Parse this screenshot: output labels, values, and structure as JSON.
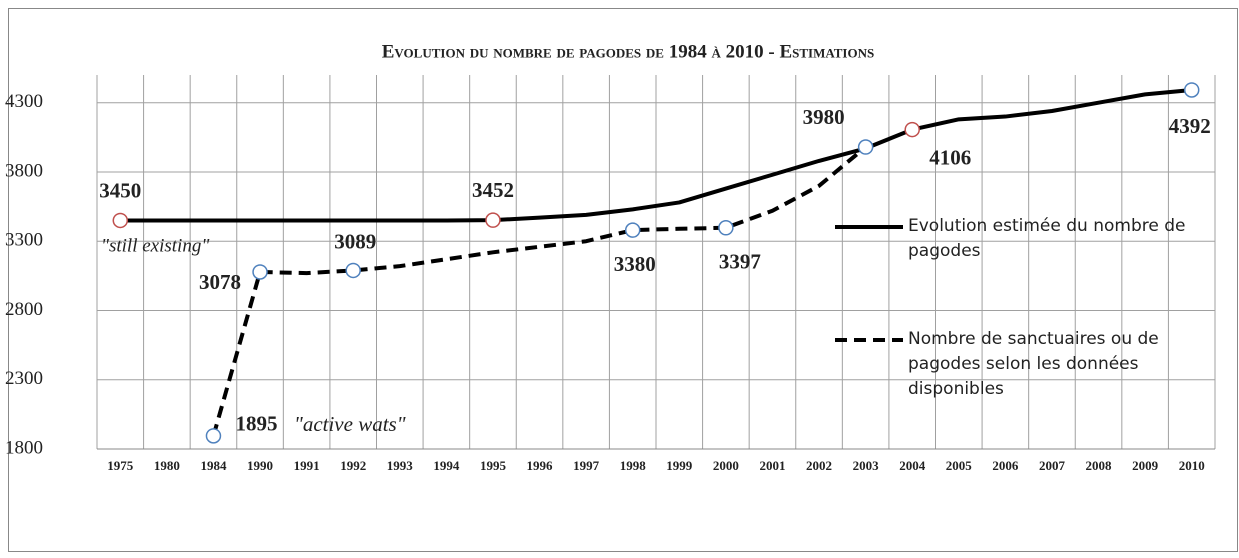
{
  "chart_data": {
    "type": "line",
    "title": "Evolution du nombre de pagodes de 1984 à 2010 - Estimations",
    "categories": [
      "1975",
      "1980",
      "1984",
      "1990",
      "1991",
      "1992",
      "1993",
      "1994",
      "1995",
      "1996",
      "1997",
      "1998",
      "1999",
      "2000",
      "2001",
      "2002",
      "2003",
      "2004",
      "2005",
      "2006",
      "2007",
      "2008",
      "2009",
      "2010"
    ],
    "series": [
      {
        "name": "Evolution estimée du nombre de pagodes",
        "color": "#000000",
        "dash": false,
        "values": [
          3450,
          3450,
          3450,
          3450,
          3450,
          3450,
          3450,
          3450,
          3452,
          3470,
          3490,
          3530,
          3580,
          3680,
          3780,
          3880,
          3970,
          4106,
          4180,
          4200,
          4240,
          4300,
          4360,
          4392
        ],
        "marked": [
          0,
          8,
          17,
          23
        ],
        "marker_colors": [
          "#c0504d",
          "#c0504d",
          "#c0504d",
          "#4f81bd"
        ]
      },
      {
        "name": "Nombre de sanctuaires ou de pagodes selon les données disponibles",
        "color": "#000000",
        "dash": true,
        "values": [
          null,
          null,
          1895,
          3078,
          3070,
          3089,
          3120,
          3170,
          3220,
          3260,
          3300,
          3380,
          3390,
          3397,
          3520,
          3700,
          3980,
          null,
          null,
          null,
          null,
          null,
          null,
          null
        ],
        "marked": [
          2,
          3,
          5,
          11,
          13,
          16
        ],
        "marker_colors": [
          "#4f81bd",
          "#4f81bd",
          "#4f81bd",
          "#4f81bd",
          "#4f81bd",
          "#4f81bd"
        ]
      }
    ],
    "annotations": [
      "\"still existing\"",
      "\"active wats\""
    ],
    "ylim": [
      1800,
      4500
    ],
    "yticks": [
      1800,
      2300,
      2800,
      3300,
      3800,
      4300
    ],
    "grid": true,
    "legend": "right"
  }
}
